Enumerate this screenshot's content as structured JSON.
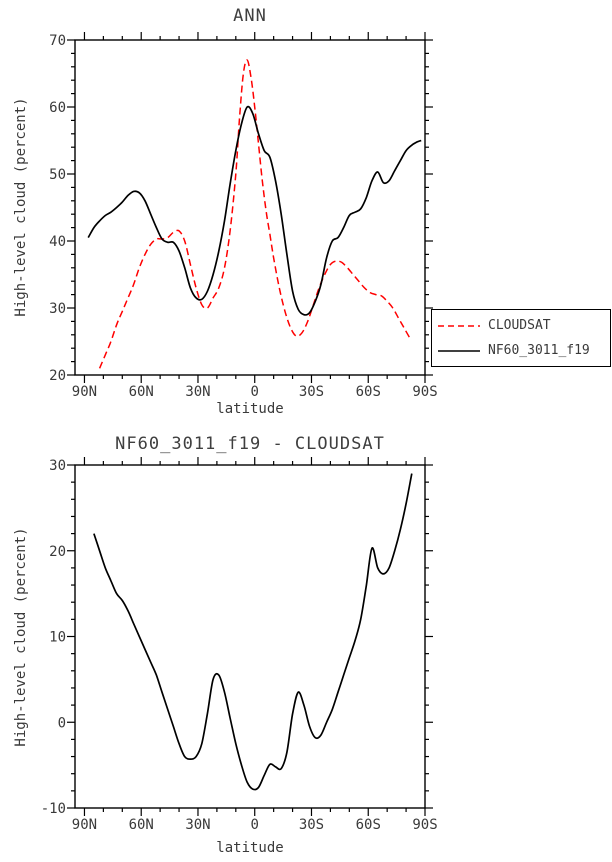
{
  "page": {
    "background": "#ffffff",
    "text_color": "#3a3a3a",
    "axis_color": "#000000"
  },
  "legend": {
    "items": [
      {
        "label": "CLOUDSAT",
        "color": "#ff0000",
        "style": "dashed"
      },
      {
        "label": "NF60_3011_f19",
        "color": "#000000",
        "style": "solid"
      }
    ]
  },
  "chart_data": [
    {
      "type": "line",
      "title": "ANN",
      "xlabel": "latitude",
      "ylabel": "High-level cloud (percent)",
      "xlim": [
        95,
        -90
      ],
      "ylim": [
        20,
        70
      ],
      "x_minor_step": 10,
      "y_minor_step": 2,
      "grid": false,
      "legend_position": "outside-right",
      "xticks": [
        {
          "value": 90,
          "label": "90N"
        },
        {
          "value": 60,
          "label": "60N"
        },
        {
          "value": 30,
          "label": "30N"
        },
        {
          "value": 0,
          "label": "0"
        },
        {
          "value": -30,
          "label": "30S"
        },
        {
          "value": -60,
          "label": "60S"
        },
        {
          "value": -90,
          "label": "90S"
        }
      ],
      "yticks": [
        {
          "value": 20,
          "label": "20"
        },
        {
          "value": 30,
          "label": "30"
        },
        {
          "value": 40,
          "label": "40"
        },
        {
          "value": 50,
          "label": "50"
        },
        {
          "value": 60,
          "label": "60"
        },
        {
          "value": 70,
          "label": "70"
        }
      ],
      "series": [
        {
          "name": "CLOUDSAT",
          "color": "#ff0000",
          "style": "dashed",
          "x": [
            82,
            79,
            76,
            73,
            70,
            67,
            64,
            61,
            58,
            55,
            52,
            49,
            46,
            43,
            40,
            37,
            34,
            31,
            28,
            25,
            22,
            19,
            16,
            13,
            10,
            8,
            6,
            4,
            2,
            0,
            -2,
            -4,
            -6,
            -8,
            -10,
            -13,
            -16,
            -19,
            -22,
            -25,
            -28,
            -31,
            -34,
            -37,
            -40,
            -43,
            -46,
            -49,
            -52,
            -55,
            -58,
            -61,
            -64,
            -67,
            -70,
            -73,
            -76,
            -79,
            -82
          ],
          "y": [
            21,
            23,
            25,
            27.5,
            29.5,
            31.5,
            33.5,
            36,
            38,
            39.5,
            40.3,
            40.3,
            40.5,
            41.3,
            41.5,
            40,
            36.5,
            33,
            30.5,
            30,
            31.5,
            33,
            36,
            41.5,
            50,
            58.5,
            65,
            67,
            64.5,
            60,
            54.5,
            49,
            44.5,
            41,
            37.5,
            33,
            29.5,
            27,
            25.8,
            26.3,
            28,
            30.5,
            33,
            35,
            36.5,
            37,
            36.8,
            36,
            35,
            34,
            33,
            32.3,
            32,
            31.8,
            31,
            30,
            28.5,
            27,
            25.5
          ]
        },
        {
          "name": "NF60_3011_f19",
          "color": "#000000",
          "style": "solid",
          "x": [
            88,
            85,
            82,
            79,
            76,
            73,
            70,
            67,
            64,
            61,
            58,
            55,
            52,
            49,
            46,
            43,
            40,
            37,
            34,
            31,
            28,
            25,
            22,
            19,
            16,
            13,
            10,
            7,
            4,
            1,
            -2,
            -5,
            -8,
            -11,
            -14,
            -17,
            -20,
            -23,
            -26,
            -29,
            -32,
            -35,
            -38,
            -41,
            -44,
            -47,
            -50,
            -53,
            -56,
            -59,
            -62,
            -65,
            -68,
            -71,
            -74,
            -77,
            -80,
            -83,
            -86,
            -88
          ],
          "y": [
            40.5,
            42,
            43,
            43.8,
            44.3,
            45,
            45.8,
            46.8,
            47.4,
            47.2,
            46,
            44,
            42,
            40.3,
            39.8,
            39.8,
            38.5,
            36,
            33,
            31.5,
            31.3,
            32.5,
            35,
            38.5,
            43,
            48.5,
            53.5,
            57.5,
            60,
            59,
            56,
            53.5,
            52.5,
            49,
            44,
            38,
            32.5,
            29.8,
            29,
            29.3,
            31,
            33.5,
            37.5,
            40,
            40.5,
            42,
            43.8,
            44.3,
            44.8,
            46.5,
            49,
            50.3,
            48.7,
            49,
            50.5,
            52,
            53.5,
            54.3,
            54.8,
            55
          ]
        }
      ]
    },
    {
      "type": "line",
      "title": "NF60_3011_f19 - CLOUDSAT",
      "xlabel": "latitude",
      "ylabel": "High-level cloud (percent)",
      "xlim": [
        95,
        -90
      ],
      "ylim": [
        -10,
        30
      ],
      "x_minor_step": 10,
      "y_minor_step": 2,
      "grid": false,
      "legend_position": "none",
      "xticks": [
        {
          "value": 90,
          "label": "90N"
        },
        {
          "value": 60,
          "label": "60N"
        },
        {
          "value": 30,
          "label": "30N"
        },
        {
          "value": 0,
          "label": "0"
        },
        {
          "value": -30,
          "label": "30S"
        },
        {
          "value": -60,
          "label": "60S"
        },
        {
          "value": -90,
          "label": "90S"
        }
      ],
      "yticks": [
        {
          "value": -10,
          "label": "-10"
        },
        {
          "value": 0,
          "label": "0"
        },
        {
          "value": 10,
          "label": "10"
        },
        {
          "value": 20,
          "label": "20"
        },
        {
          "value": 30,
          "label": "30"
        }
      ],
      "series": [
        {
          "name": "NF60_3011_f19 - CLOUDSAT",
          "color": "#000000",
          "style": "solid",
          "x": [
            85,
            82,
            79,
            76,
            73,
            70,
            67,
            64,
            61,
            58,
            55,
            52,
            49,
            46,
            43,
            40,
            37,
            34,
            31,
            28,
            25,
            22,
            19,
            16,
            13,
            10,
            7,
            4,
            1,
            -2,
            -5,
            -8,
            -11,
            -14,
            -17,
            -20,
            -23,
            -26,
            -29,
            -32,
            -35,
            -38,
            -41,
            -44,
            -47,
            -50,
            -53,
            -56,
            -59,
            -62,
            -65,
            -68,
            -71,
            -74,
            -77,
            -80,
            -83
          ],
          "y": [
            22,
            20,
            18,
            16.5,
            15,
            14.2,
            13,
            11.5,
            10,
            8.5,
            7,
            5.5,
            3.5,
            1.5,
            -0.5,
            -2.5,
            -4,
            -4.3,
            -4,
            -2.5,
            1,
            5,
            5.5,
            3.5,
            0.5,
            -2.5,
            -5,
            -7,
            -7.8,
            -7.6,
            -6.2,
            -4.9,
            -5.2,
            -5.4,
            -3.5,
            1,
            3.5,
            2,
            -0.5,
            -1.8,
            -1.5,
            0,
            1.5,
            3.5,
            5.5,
            7.5,
            9.5,
            12,
            16,
            20.3,
            18,
            17.3,
            18,
            20,
            22.5,
            25.5,
            29
          ]
        }
      ]
    }
  ]
}
